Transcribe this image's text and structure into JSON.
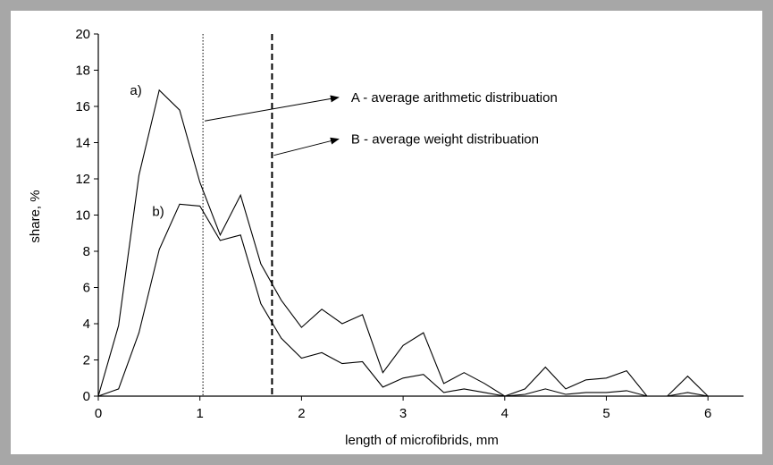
{
  "chart_data": {
    "type": "line",
    "title": "",
    "xlabel": "length of  microfibrids, mm",
    "ylabel": "share, %",
    "xlim": [
      0,
      6.35
    ],
    "ylim": [
      0,
      20
    ],
    "x_ticks": [
      "0",
      "1",
      "2",
      "3",
      "4",
      "5",
      "6"
    ],
    "y_ticks": [
      "0",
      "2",
      "4",
      "6",
      "8",
      "10",
      "12",
      "14",
      "16",
      "18",
      "20"
    ],
    "grid": false,
    "series": [
      {
        "name": "a)",
        "x": [
          0,
          0.2,
          0.4,
          0.6,
          0.8,
          1.0,
          1.2,
          1.4,
          1.6,
          1.8,
          2.0,
          2.2,
          2.4,
          2.6,
          2.8,
          3.0,
          3.2,
          3.4,
          3.6,
          3.8,
          4.0,
          4.2,
          4.4,
          4.6,
          4.8,
          5.0,
          5.2,
          5.4,
          5.6,
          5.8,
          6.0
        ],
        "values": [
          0,
          3.9,
          12.2,
          16.9,
          15.8,
          11.8,
          8.9,
          11.1,
          7.3,
          5.3,
          3.8,
          4.8,
          4.0,
          4.5,
          1.3,
          2.8,
          3.5,
          0.7,
          1.3,
          0.7,
          0.0,
          0.4,
          1.6,
          0.4,
          0.9,
          1.0,
          1.4,
          0.0,
          0.0,
          1.1,
          0.0
        ]
      },
      {
        "name": "b)",
        "x": [
          0,
          0.2,
          0.4,
          0.6,
          0.8,
          1.0,
          1.2,
          1.4,
          1.6,
          1.8,
          2.0,
          2.2,
          2.4,
          2.6,
          2.8,
          3.0,
          3.2,
          3.4,
          3.6,
          3.8,
          4.0,
          4.2,
          4.4,
          4.6,
          4.8,
          5.0,
          5.2,
          5.4,
          5.6,
          5.8,
          6.0
        ],
        "values": [
          0,
          0.4,
          3.5,
          8.1,
          10.6,
          10.5,
          8.6,
          8.9,
          5.1,
          3.2,
          2.1,
          2.4,
          1.8,
          1.9,
          0.5,
          1.0,
          1.2,
          0.2,
          0.4,
          0.2,
          0.0,
          0.1,
          0.4,
          0.1,
          0.2,
          0.2,
          0.3,
          0.0,
          0.0,
          0.2,
          0.0
        ]
      }
    ],
    "reference_lines": [
      {
        "name": "A",
        "x": 1.03,
        "style": "dotted"
      },
      {
        "name": "B",
        "x": 1.71,
        "style": "dashed"
      }
    ],
    "annotations": [
      {
        "label": "A - average arithmetic distribuation",
        "points_to_x": 1.03,
        "points_to_y": 15.2,
        "text_anchor_x": 2.4,
        "text_anchor_y": 16.5
      },
      {
        "label": "B - average weight distribuation",
        "points_to_x": 1.71,
        "points_to_y": 13.3,
        "text_anchor_x": 2.4,
        "text_anchor_y": 14.2
      }
    ]
  }
}
